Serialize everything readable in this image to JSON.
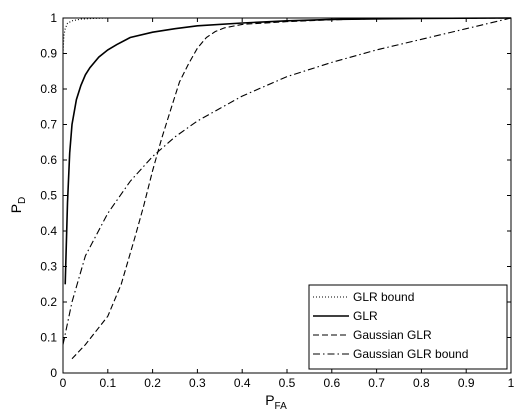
{
  "chart_data": {
    "type": "line",
    "xlabel": {
      "main": "P",
      "sub": "FA"
    },
    "ylabel": {
      "main": "P",
      "sub": "D"
    },
    "xlim": [
      0,
      1
    ],
    "ylim": [
      0,
      1
    ],
    "xticks": [
      "0",
      "0.1",
      "0.2",
      "0.3",
      "0.4",
      "0.5",
      "0.6",
      "0.7",
      "0.8",
      "0.9",
      "1"
    ],
    "yticks": [
      "0",
      "0.1",
      "0.2",
      "0.3",
      "0.4",
      "0.5",
      "0.6",
      "0.7",
      "0.8",
      "0.9",
      "1"
    ],
    "grid": false,
    "legend": "bottom-right",
    "series": [
      {
        "name": "GLR bound",
        "style": "dotted",
        "x": [
          0,
          0.002,
          0.005,
          0.01,
          0.02,
          0.04,
          0.07,
          0.1,
          1
        ],
        "y": [
          0.9,
          0.95,
          0.97,
          0.985,
          0.992,
          0.997,
          0.999,
          1,
          1
        ]
      },
      {
        "name": "GLR",
        "style": "solid",
        "x": [
          0.005,
          0.01,
          0.015,
          0.02,
          0.03,
          0.04,
          0.05,
          0.06,
          0.08,
          0.1,
          0.12,
          0.15,
          0.2,
          0.25,
          0.3,
          0.4,
          0.5,
          0.6,
          0.8,
          1
        ],
        "y": [
          0.25,
          0.48,
          0.62,
          0.7,
          0.77,
          0.81,
          0.84,
          0.86,
          0.89,
          0.91,
          0.925,
          0.945,
          0.96,
          0.97,
          0.978,
          0.986,
          0.992,
          0.996,
          0.999,
          1
        ]
      },
      {
        "name": "Gaussian GLR",
        "style": "dashed",
        "x": [
          0.02,
          0.05,
          0.1,
          0.13,
          0.16,
          0.18,
          0.2,
          0.22,
          0.24,
          0.26,
          0.28,
          0.3,
          0.32,
          0.34,
          0.36,
          0.4,
          0.5,
          0.6,
          0.7,
          0.8,
          1
        ],
        "y": [
          0.04,
          0.08,
          0.16,
          0.25,
          0.38,
          0.47,
          0.57,
          0.66,
          0.74,
          0.82,
          0.87,
          0.915,
          0.945,
          0.962,
          0.972,
          0.982,
          0.99,
          0.995,
          0.998,
          0.999,
          1
        ]
      },
      {
        "name": "Gaussian GLR bound",
        "style": "dashdot",
        "x": [
          0,
          0.02,
          0.05,
          0.1,
          0.15,
          0.2,
          0.25,
          0.3,
          0.35,
          0.4,
          0.5,
          0.6,
          0.7,
          0.8,
          0.9,
          1
        ],
        "y": [
          0.08,
          0.2,
          0.33,
          0.45,
          0.54,
          0.61,
          0.665,
          0.71,
          0.745,
          0.78,
          0.835,
          0.875,
          0.91,
          0.94,
          0.97,
          1
        ]
      }
    ]
  }
}
